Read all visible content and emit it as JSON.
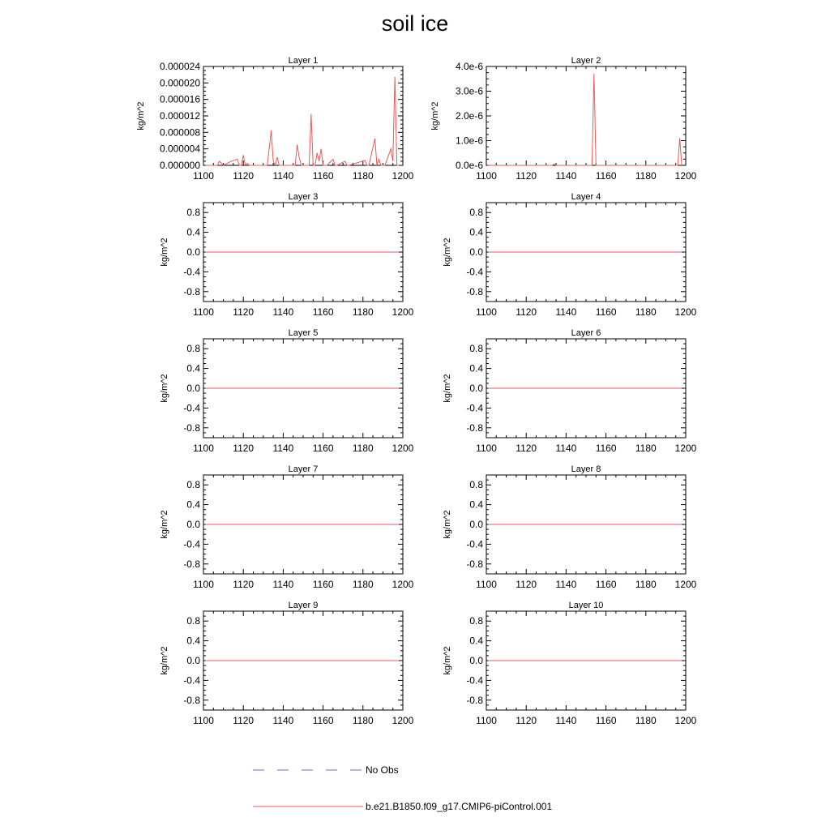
{
  "figure": {
    "title": "soil ice"
  },
  "legend": [
    {
      "label": "No Obs",
      "color": "#6a6ad8",
      "style": "dashed"
    },
    {
      "label": "b.e21.B1850.f09_g17.CMIP6-piControl.001",
      "color": "#e85a5a",
      "style": "solid"
    }
  ],
  "chart_data": [
    {
      "type": "line",
      "title": "Layer 1",
      "xlabel": "",
      "ylabel": "kg/m^2",
      "xlim": [
        1100,
        1200
      ],
      "ylim": [
        0,
        2.4e-05
      ],
      "xticks": [
        1100,
        1120,
        1140,
        1160,
        1180,
        1200
      ],
      "xticklabels": [
        "1100",
        "1120",
        "1140",
        "1160",
        "1180",
        "1200"
      ],
      "yticks": [
        0,
        4e-06,
        8e-06,
        1.2e-05,
        1.6e-05,
        2e-05,
        2.4e-05
      ],
      "yticklabels": [
        "0.000000",
        "0.000004",
        "0.000008",
        "0.000012",
        "0.000016",
        "0.000020",
        "0.000024"
      ],
      "series": [
        {
          "name": "b.e21.B1850.f09_g17.CMIP6-piControl.001",
          "x": [
            1101,
            1107,
            1108,
            1110,
            1114,
            1117,
            1118,
            1119,
            1120,
            1121,
            1122,
            1123,
            1132,
            1134,
            1135,
            1136,
            1137,
            1138,
            1139,
            1146,
            1147,
            1148,
            1149,
            1153,
            1154,
            1155,
            1156,
            1157,
            1158,
            1159,
            1160,
            1161,
            1162,
            1165,
            1166,
            1167,
            1171,
            1172,
            1173,
            1181,
            1182,
            1183,
            1186,
            1187,
            1188,
            1189,
            1190,
            1191,
            1194,
            1195,
            1196,
            1197,
            1198
          ],
          "y": [
            0,
            0,
            1e-06,
            0,
            1e-06,
            1.5e-06,
            0,
            0,
            2.5e-06,
            0,
            5e-07,
            0,
            0,
            8.5e-06,
            1e-06,
            0,
            2e-06,
            0,
            0,
            0,
            5e-06,
            2e-06,
            0,
            0,
            1.25e-05,
            0,
            0,
            3e-06,
            1e-06,
            4e-06,
            0,
            0,
            0,
            1.5e-06,
            0,
            0,
            1e-06,
            0,
            0,
            1.2e-06,
            0,
            0,
            6.5e-06,
            0,
            1.5e-06,
            0,
            0,
            0,
            4e-06,
            1e-06,
            2.15e-05,
            0,
            0
          ]
        }
      ]
    },
    {
      "type": "line",
      "title": "Layer 2",
      "xlabel": "",
      "ylabel": "kg/m^2",
      "xlim": [
        1100,
        1200
      ],
      "ylim": [
        0,
        4e-06
      ],
      "xticks": [
        1100,
        1120,
        1140,
        1160,
        1180,
        1200
      ],
      "xticklabels": [
        "1100",
        "1120",
        "1140",
        "1160",
        "1180",
        "1200"
      ],
      "yticks": [
        0,
        1e-06,
        2e-06,
        3e-06,
        4e-06
      ],
      "yticklabels": [
        "0.0e-6",
        "1.0e-6",
        "2.0e-6",
        "3.0e-6",
        "4.0e-6"
      ],
      "series": [
        {
          "name": "b.e21.B1850.f09_g17.CMIP6-piControl.001",
          "x": [
            1101,
            1133,
            1134,
            1135,
            1153,
            1154,
            1155,
            1156,
            1196,
            1197,
            1198
          ],
          "y": [
            0,
            0,
            5e-08,
            0,
            0,
            3.7e-06,
            0,
            0,
            0,
            1.1e-06,
            0
          ]
        }
      ]
    },
    {
      "type": "line",
      "title": "Layer 3",
      "xlabel": "",
      "ylabel": "kg/m^2",
      "xlim": [
        1100,
        1200
      ],
      "ylim": [
        -1,
        1
      ],
      "xticks": [
        1100,
        1120,
        1140,
        1160,
        1180,
        1200
      ],
      "xticklabels": [
        "1100",
        "1120",
        "1140",
        "1160",
        "1180",
        "1200"
      ],
      "yticks": [
        -0.8,
        -0.4,
        0,
        0.4,
        0.8
      ],
      "yticklabels": [
        "-0.8",
        "-0.4",
        "0.0",
        "0.4",
        "0.8"
      ],
      "series": [
        {
          "name": "b.e21.B1850.f09_g17.CMIP6-piControl.001",
          "x": [
            1101,
            1198
          ],
          "y": [
            0,
            0
          ]
        }
      ]
    },
    {
      "type": "line",
      "title": "Layer 4",
      "xlabel": "",
      "ylabel": "kg/m^2",
      "xlim": [
        1100,
        1200
      ],
      "ylim": [
        -1,
        1
      ],
      "xticks": [
        1100,
        1120,
        1140,
        1160,
        1180,
        1200
      ],
      "xticklabels": [
        "1100",
        "1120",
        "1140",
        "1160",
        "1180",
        "1200"
      ],
      "yticks": [
        -0.8,
        -0.4,
        0,
        0.4,
        0.8
      ],
      "yticklabels": [
        "-0.8",
        "-0.4",
        "0.0",
        "0.4",
        "0.8"
      ],
      "series": [
        {
          "name": "b.e21.B1850.f09_g17.CMIP6-piControl.001",
          "x": [
            1101,
            1198
          ],
          "y": [
            0,
            0
          ]
        }
      ]
    },
    {
      "type": "line",
      "title": "Layer 5",
      "xlabel": "",
      "ylabel": "kg/m^2",
      "xlim": [
        1100,
        1200
      ],
      "ylim": [
        -1,
        1
      ],
      "xticks": [
        1100,
        1120,
        1140,
        1160,
        1180,
        1200
      ],
      "xticklabels": [
        "1100",
        "1120",
        "1140",
        "1160",
        "1180",
        "1200"
      ],
      "yticks": [
        -0.8,
        -0.4,
        0,
        0.4,
        0.8
      ],
      "yticklabels": [
        "-0.8",
        "-0.4",
        "0.0",
        "0.4",
        "0.8"
      ],
      "series": [
        {
          "name": "b.e21.B1850.f09_g17.CMIP6-piControl.001",
          "x": [
            1101,
            1198
          ],
          "y": [
            0,
            0
          ]
        }
      ]
    },
    {
      "type": "line",
      "title": "Layer 6",
      "xlabel": "",
      "ylabel": "kg/m^2",
      "xlim": [
        1100,
        1200
      ],
      "ylim": [
        -1,
        1
      ],
      "xticks": [
        1100,
        1120,
        1140,
        1160,
        1180,
        1200
      ],
      "xticklabels": [
        "1100",
        "1120",
        "1140",
        "1160",
        "1180",
        "1200"
      ],
      "yticks": [
        -0.8,
        -0.4,
        0,
        0.4,
        0.8
      ],
      "yticklabels": [
        "-0.8",
        "-0.4",
        "0.0",
        "0.4",
        "0.8"
      ],
      "series": [
        {
          "name": "b.e21.B1850.f09_g17.CMIP6-piControl.001",
          "x": [
            1101,
            1198
          ],
          "y": [
            0,
            0
          ]
        }
      ]
    },
    {
      "type": "line",
      "title": "Layer 7",
      "xlabel": "",
      "ylabel": "kg/m^2",
      "xlim": [
        1100,
        1200
      ],
      "ylim": [
        -1,
        1
      ],
      "xticks": [
        1100,
        1120,
        1140,
        1160,
        1180,
        1200
      ],
      "xticklabels": [
        "1100",
        "1120",
        "1140",
        "1160",
        "1180",
        "1200"
      ],
      "yticks": [
        -0.8,
        -0.4,
        0,
        0.4,
        0.8
      ],
      "yticklabels": [
        "-0.8",
        "-0.4",
        "0.0",
        "0.4",
        "0.8"
      ],
      "series": [
        {
          "name": "b.e21.B1850.f09_g17.CMIP6-piControl.001",
          "x": [
            1101,
            1198
          ],
          "y": [
            0,
            0
          ]
        }
      ]
    },
    {
      "type": "line",
      "title": "Layer 8",
      "xlabel": "",
      "ylabel": "kg/m^2",
      "xlim": [
        1100,
        1200
      ],
      "ylim": [
        -1,
        1
      ],
      "xticks": [
        1100,
        1120,
        1140,
        1160,
        1180,
        1200
      ],
      "xticklabels": [
        "1100",
        "1120",
        "1140",
        "1160",
        "1180",
        "1200"
      ],
      "yticks": [
        -0.8,
        -0.4,
        0,
        0.4,
        0.8
      ],
      "yticklabels": [
        "-0.8",
        "-0.4",
        "0.0",
        "0.4",
        "0.8"
      ],
      "series": [
        {
          "name": "b.e21.B1850.f09_g17.CMIP6-piControl.001",
          "x": [
            1101,
            1198
          ],
          "y": [
            0,
            0
          ]
        }
      ]
    },
    {
      "type": "line",
      "title": "Layer 9",
      "xlabel": "",
      "ylabel": "kg/m^2",
      "xlim": [
        1100,
        1200
      ],
      "ylim": [
        -1,
        1
      ],
      "xticks": [
        1100,
        1120,
        1140,
        1160,
        1180,
        1200
      ],
      "xticklabels": [
        "1100",
        "1120",
        "1140",
        "1160",
        "1180",
        "1200"
      ],
      "yticks": [
        -0.8,
        -0.4,
        0,
        0.4,
        0.8
      ],
      "yticklabels": [
        "-0.8",
        "-0.4",
        "0.0",
        "0.4",
        "0.8"
      ],
      "series": [
        {
          "name": "b.e21.B1850.f09_g17.CMIP6-piControl.001",
          "x": [
            1101,
            1198
          ],
          "y": [
            0,
            0
          ]
        }
      ]
    },
    {
      "type": "line",
      "title": "Layer 10",
      "xlabel": "",
      "ylabel": "kg/m^2",
      "xlim": [
        1100,
        1200
      ],
      "ylim": [
        -1,
        1
      ],
      "xticks": [
        1100,
        1120,
        1140,
        1160,
        1180,
        1200
      ],
      "xticklabels": [
        "1100",
        "1120",
        "1140",
        "1160",
        "1180",
        "1200"
      ],
      "yticks": [
        -0.8,
        -0.4,
        0,
        0.4,
        0.8
      ],
      "yticklabels": [
        "-0.8",
        "-0.4",
        "0.0",
        "0.4",
        "0.8"
      ],
      "series": [
        {
          "name": "b.e21.B1850.f09_g17.CMIP6-piControl.001",
          "x": [
            1101,
            1198
          ],
          "y": [
            0,
            0
          ]
        }
      ]
    }
  ]
}
